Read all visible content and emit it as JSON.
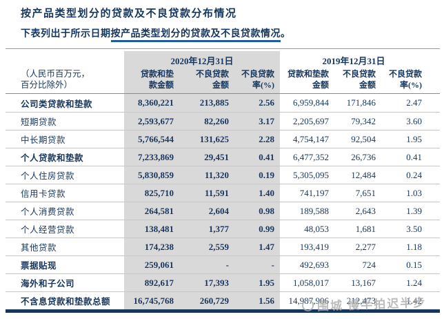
{
  "colors": {
    "navy_text": "#17365D",
    "underline_blue": "#1D5AA8",
    "column_shade_gray": "#D9D9D9",
    "bottom_bar_navy": "#17365D"
  },
  "page": {
    "title": "按产品类型划分的贷款及不良贷款分布情况",
    "subtitle_prefix": "下表列出于所示日期",
    "subtitle_underlined": "按产品类型划分的贷款及不良贷款情况",
    "subtitle_period": "。"
  },
  "table": {
    "unit_note_line1": "（人民币百万元，",
    "unit_note_line2": "百分比除外）",
    "column_groups": [
      {
        "label": "2020年12月31日"
      },
      {
        "label": "2019年12月31日"
      }
    ],
    "columns_2020": [
      {
        "line1": "贷款和垫",
        "line2": "款金额"
      },
      {
        "line1": "不良贷款",
        "line2": "金额"
      },
      {
        "line1": "不良贷款",
        "line2": "率(%)"
      }
    ],
    "columns_2019": [
      {
        "line1": "贷款和垫款",
        "line2": "金额"
      },
      {
        "line1": "不良贷款",
        "line2": "金额"
      },
      {
        "line1": "不良贷款",
        "line2": "率(%)"
      }
    ],
    "rows": [
      {
        "label": "公司类贷款和垫款",
        "bold": true,
        "values": [
          "8,360,221",
          "213,885",
          "2.56",
          "6,959,844",
          "171,846",
          "2.47"
        ]
      },
      {
        "label": "短期贷款",
        "bold": false,
        "values": [
          "2,593,677",
          "82,260",
          "3.17",
          "2,205,697",
          "79,342",
          "3.60"
        ]
      },
      {
        "label": "中长期贷款",
        "bold": false,
        "values": [
          "5,766,544",
          "131,625",
          "2.28",
          "4,754,147",
          "92,504",
          "1.95"
        ]
      },
      {
        "label": "个人贷款和垫款",
        "bold": true,
        "values": [
          "7,233,869",
          "29,451",
          "0.41",
          "6,477,352",
          "26,736",
          "0.41"
        ]
      },
      {
        "label": "个人住房贷款",
        "bold": false,
        "values": [
          "5,830,859",
          "11,320",
          "0.19",
          "5,305,095",
          "12,484",
          "0.24"
        ]
      },
      {
        "label": "信用卡贷款",
        "bold": false,
        "values": [
          "825,710",
          "11,591",
          "1.40",
          "741,197",
          "7,651",
          "1.03"
        ]
      },
      {
        "label": "个人消费贷款",
        "bold": false,
        "values": [
          "264,581",
          "2,604",
          "0.98",
          "189,588",
          "2,643",
          "1.39"
        ]
      },
      {
        "label": "个人经营贷款",
        "bold": false,
        "values": [
          "138,481",
          "1,377",
          "0.99",
          "48,053",
          "1,681",
          "3.50"
        ]
      },
      {
        "label": "其他贷款",
        "bold": false,
        "values": [
          "174,238",
          "2,559",
          "1.47",
          "193,419",
          "2,277",
          "1.18"
        ]
      },
      {
        "label": "票据贴现",
        "bold": true,
        "values": [
          "259,061",
          "-",
          "-",
          "492,693",
          "724",
          "0.15"
        ]
      },
      {
        "label": "海外和子公司",
        "bold": true,
        "values": [
          "892,617",
          "17,393",
          "1.95",
          "1,058,017",
          "13,167",
          "1.24"
        ]
      },
      {
        "label": "不含息贷款和垫款总额",
        "bold": true,
        "values": [
          "16,745,768",
          "260,729",
          "1.56",
          "14,987,906",
          "212,473",
          "1.42"
        ]
      }
    ]
  },
  "watermark": {
    "icon": "circle-logo-icon",
    "text": "围城 慢半拍迟半步"
  }
}
